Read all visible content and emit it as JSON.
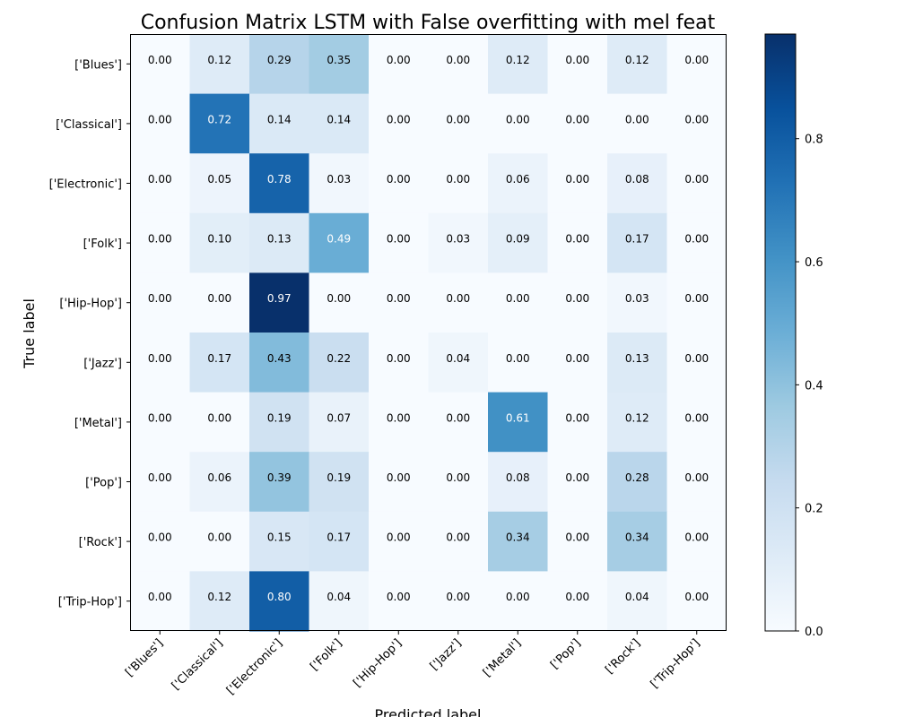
{
  "chart_data": {
    "type": "heatmap",
    "title": "Confusion Matrix LSTM with False overfitting with mel feat",
    "xlabel": "Predicted label",
    "ylabel": "True label",
    "row_labels": [
      "['Blues']",
      "['Classical']",
      "['Electronic']",
      "['Folk']",
      "['Hip-Hop']",
      "['Jazz']",
      "['Metal']",
      "['Pop']",
      "['Rock']",
      "['Trip-Hop']"
    ],
    "col_labels": [
      "['Blues']",
      "['Classical']",
      "['Electronic']",
      "['Folk']",
      "['Hip-Hop']",
      "['Jazz']",
      "['Metal']",
      "['Pop']",
      "['Rock']",
      "['Trip-Hop']"
    ],
    "values": [
      [
        0.0,
        0.12,
        0.29,
        0.35,
        0.0,
        0.0,
        0.12,
        0.0,
        0.12,
        0.0
      ],
      [
        0.0,
        0.72,
        0.14,
        0.14,
        0.0,
        0.0,
        0.0,
        0.0,
        0.0,
        0.0
      ],
      [
        0.0,
        0.05,
        0.78,
        0.03,
        0.0,
        0.0,
        0.06,
        0.0,
        0.08,
        0.0
      ],
      [
        0.0,
        0.1,
        0.13,
        0.49,
        0.0,
        0.03,
        0.09,
        0.0,
        0.17,
        0.0
      ],
      [
        0.0,
        0.0,
        0.97,
        0.0,
        0.0,
        0.0,
        0.0,
        0.0,
        0.03,
        0.0
      ],
      [
        0.0,
        0.17,
        0.43,
        0.22,
        0.0,
        0.04,
        0.0,
        0.0,
        0.13,
        0.0
      ],
      [
        0.0,
        0.0,
        0.19,
        0.07,
        0.0,
        0.0,
        0.61,
        0.0,
        0.12,
        0.0
      ],
      [
        0.0,
        0.06,
        0.39,
        0.19,
        0.0,
        0.0,
        0.08,
        0.0,
        0.28,
        0.0
      ],
      [
        0.0,
        0.0,
        0.15,
        0.17,
        0.0,
        0.0,
        0.34,
        0.0,
        0.34,
        0.0
      ],
      [
        0.0,
        0.12,
        0.8,
        0.04,
        0.0,
        0.0,
        0.0,
        0.0,
        0.04,
        0.0
      ]
    ],
    "value_format": "0.00",
    "colormap": "Blues",
    "vmin": 0.0,
    "vmax": 0.97,
    "colorbar_ticks": [
      0.0,
      0.2,
      0.4,
      0.6,
      0.8
    ],
    "colorbar_tick_labels": [
      "0.0",
      "0.2",
      "0.4",
      "0.6",
      "0.8"
    ]
  }
}
